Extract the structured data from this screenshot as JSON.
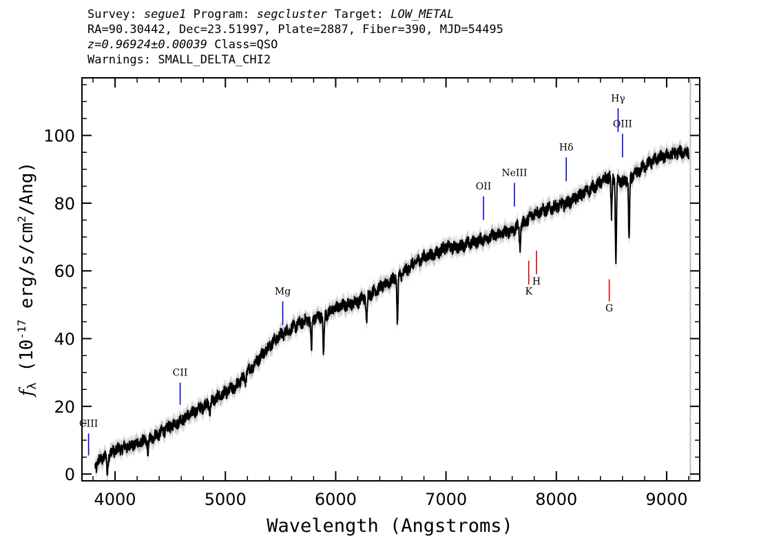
{
  "header": {
    "survey_label": "Survey:",
    "survey_value": "segue1",
    "program_label": "Program:",
    "program_value": "segcluster",
    "target_label": "Target:",
    "target_value": "LOW_METAL",
    "coords_line": "RA=90.30442, Dec=23.51997, Plate=2887, Fiber=390, MJD=54495",
    "redshift_value": "z=0.96924±0.00039",
    "class_text": "Class=QSO",
    "warnings_line": "Warnings: SMALL_DELTA_CHI2"
  },
  "chart_data": {
    "type": "line",
    "xlabel": "Wavelength (Angstroms)",
    "ylabel_main": "f",
    "ylabel_sub": "λ",
    "ylabel_rest": " (10",
    "ylabel_exp": "-17",
    "ylabel_tail": " erg/s/cm",
    "ylabel_exp2": "2",
    "ylabel_end": "/Ang)",
    "xlim": [
      3700,
      9300
    ],
    "ylim": [
      -2,
      117
    ],
    "x_ticks": [
      4000,
      5000,
      6000,
      7000,
      8000,
      9000
    ],
    "y_ticks": [
      0,
      20,
      40,
      60,
      80,
      100
    ],
    "colors": {
      "spectrum": "#000000",
      "error_band": "#bdbdbd",
      "emission_lines": "#0000ee",
      "absorption_lines": "#dd0000"
    },
    "series": [
      {
        "x": [
          3820,
          3900,
          4000,
          4100,
          4200,
          4300,
          4400,
          4500,
          4600,
          4700,
          4800,
          4900,
          5000,
          5100,
          5200,
          5300,
          5400,
          5500,
          5600,
          5700,
          5800,
          5900,
          6000,
          6100,
          6200,
          6300,
          6400,
          6500,
          6600,
          6700,
          6800,
          6900,
          7000,
          7100,
          7200,
          7300,
          7400,
          7500,
          7600,
          7700,
          7800,
          7900,
          8000,
          8100,
          8200,
          8300,
          8400,
          8480,
          8550,
          8600,
          8700,
          8800,
          8900,
          9000,
          9100,
          9200
        ],
        "y": [
          3,
          5,
          7,
          8,
          9,
          10,
          12,
          14,
          16,
          18,
          20,
          22,
          24,
          26,
          30,
          34,
          38,
          41,
          43,
          45,
          46,
          47,
          49,
          50,
          51,
          53,
          55,
          57,
          59,
          62,
          64,
          65,
          67,
          67,
          68,
          69,
          70,
          71,
          72,
          74,
          77,
          78,
          79,
          80,
          82,
          84,
          86,
          88,
          87,
          86,
          88,
          91,
          93,
          94,
          95,
          95
        ]
      }
    ],
    "absorption_dips": [
      {
        "x": 3830,
        "y": 2
      },
      {
        "x": 3930,
        "y": 0
      },
      {
        "x": 4300,
        "y": 6
      },
      {
        "x": 4860,
        "y": 18
      },
      {
        "x": 5180,
        "y": 27
      },
      {
        "x": 5780,
        "y": 36
      },
      {
        "x": 5890,
        "y": 35
      },
      {
        "x": 6280,
        "y": 44
      },
      {
        "x": 6560,
        "y": 45
      },
      {
        "x": 7670,
        "y": 67
      },
      {
        "x": 8500,
        "y": 76
      },
      {
        "x": 8540,
        "y": 62
      },
      {
        "x": 8660,
        "y": 69
      }
    ],
    "line_markers": [
      {
        "label": "CIII",
        "x": 3760,
        "y_low": 5.5,
        "y_high": 12,
        "label_y": 14,
        "color": "blue"
      },
      {
        "label": "CII",
        "x": 4590,
        "y_low": 20.5,
        "y_high": 27,
        "label_y": 29,
        "color": "blue"
      },
      {
        "label": "Mg",
        "x": 5520,
        "y_low": 44,
        "y_high": 51,
        "label_y": 53,
        "color": "blue"
      },
      {
        "label": "OII",
        "x": 7340,
        "y_low": 75,
        "y_high": 82,
        "label_y": 84,
        "color": "blue"
      },
      {
        "label": "NeIII",
        "x": 7620,
        "y_low": 79,
        "y_high": 86,
        "label_y": 88,
        "color": "blue"
      },
      {
        "label": "Hδ",
        "x": 8090,
        "y_low": 86.5,
        "y_high": 93.5,
        "label_y": 95.5,
        "color": "blue"
      },
      {
        "label": "Hγ",
        "x": 8560,
        "y_low": 101,
        "y_high": 108,
        "label_y": 110,
        "color": "blue"
      },
      {
        "label": "OIII",
        "x": 8600,
        "y_low": 93.5,
        "y_high": 100.5,
        "label_y": 102.5,
        "color": "blue"
      },
      {
        "label": "K",
        "x": 7750,
        "y_low": 56,
        "y_high": 63,
        "label_y": 53,
        "color": "red"
      },
      {
        "label": "H",
        "x": 7820,
        "y_low": 59,
        "y_high": 66,
        "label_y": 56,
        "color": "red"
      },
      {
        "label": "G",
        "x": 8480,
        "y_low": 51,
        "y_high": 57.5,
        "label_y": 48,
        "color": "red"
      }
    ]
  }
}
